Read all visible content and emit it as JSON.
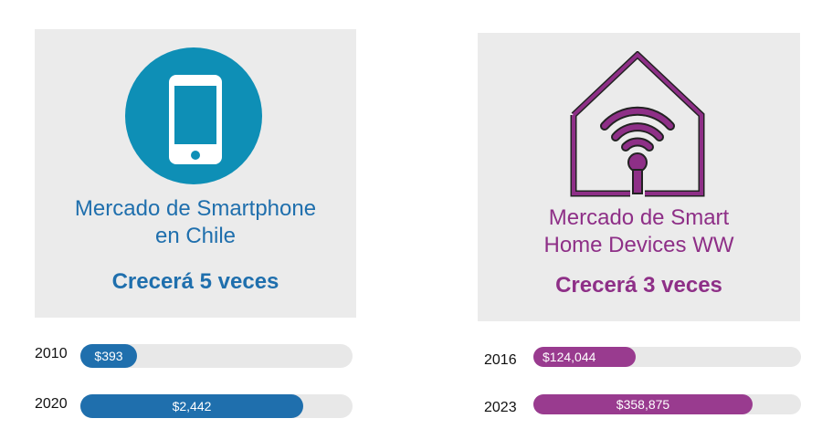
{
  "left_panel": {
    "title": "Mercado de Smartphone\nen Chile",
    "highlight": "Crecerá 5 veces",
    "icon": "smartphone-icon",
    "color": "#1f6fad",
    "bars": [
      {
        "year": "2010",
        "label": "$393",
        "value": 393
      },
      {
        "year": "2020",
        "label": "$2,442",
        "value": 2442
      }
    ]
  },
  "right_panel": {
    "title": "Mercado de Smart\nHome Devices WW",
    "highlight": "Crecerá 3 veces",
    "icon": "smart-home-icon",
    "color": "#8e2f87",
    "bars": [
      {
        "year": "2016",
        "label": "$124,044",
        "value": 124044
      },
      {
        "year": "2023",
        "label": "$358,875",
        "value": 358875
      }
    ]
  }
}
